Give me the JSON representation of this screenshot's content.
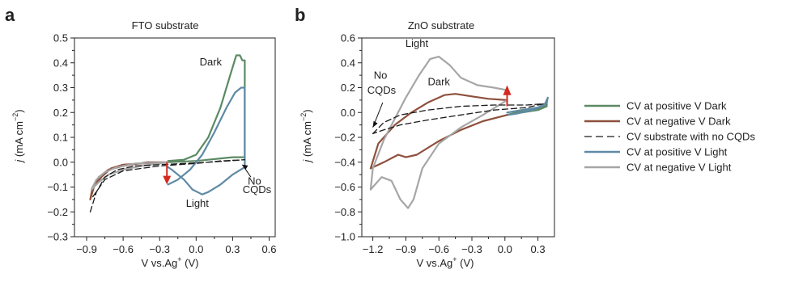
{
  "colors": {
    "pos_dark": "#5b8a63",
    "neg_dark": "#8e503c",
    "substrate": "#1a1a1a",
    "pos_light": "#5f8aa6",
    "neg_light": "#a6a6a6",
    "arrow": "#d42a20"
  },
  "panels": [
    {
      "letter": "a",
      "title": "FTO substrate",
      "ylabel_j": "j",
      "ylabel_rest": " (mA cm",
      "ylabel_exp": "−2",
      "ylabel_close": ")",
      "xlabel_main": "V vs.Ag",
      "xlabel_sup": "+",
      "xlabel_unit": " (V)"
    },
    {
      "letter": "b",
      "title": "ZnO substrate",
      "ylabel_j": "j",
      "ylabel_rest": " (mA cm",
      "ylabel_exp": "−2",
      "ylabel_close": ")",
      "xlabel_main": "V vs.Ag",
      "xlabel_sup": "+",
      "xlabel_unit": " (V)"
    }
  ],
  "legend": [
    {
      "label": "CV at positive V Dark",
      "color_key": "pos_dark",
      "dash": false
    },
    {
      "label": "CV at negative V Dark",
      "color_key": "neg_dark",
      "dash": false
    },
    {
      "label": "CV substrate with no CQDs",
      "color_key": "substrate",
      "dash": true
    },
    {
      "label": "CV at positive V Light",
      "color_key": "pos_light",
      "dash": false
    },
    {
      "label": "CV at negative V Light",
      "color_key": "neg_light",
      "dash": false
    }
  ],
  "chart_data": [
    {
      "type": "line",
      "title": "FTO substrate",
      "xlabel": "V vs.Ag+ (V)",
      "ylabel": "j (mA cm−2)",
      "xlim": [
        -1.0,
        0.65
      ],
      "ylim": [
        -0.3,
        0.5
      ],
      "xticks": [
        -0.9,
        -0.6,
        -0.3,
        0.0,
        0.3,
        0.6
      ],
      "yticks": [
        -0.3,
        -0.2,
        -0.1,
        0.0,
        0.1,
        0.2,
        0.3,
        0.4,
        0.5
      ],
      "annotations": [
        {
          "text": "Dark",
          "x": 0.12,
          "y": 0.39
        },
        {
          "text": "Light",
          "x": 0.01,
          "y": -0.18
        },
        {
          "text": "No",
          "x": 0.48,
          "y": -0.09
        },
        {
          "text": "CQDs",
          "x": 0.5,
          "y": -0.125
        }
      ],
      "series": [
        {
          "name": "CV at positive V Dark",
          "color_key": "pos_dark",
          "dash": false,
          "points": [
            [
              -0.23,
              0.005
            ],
            [
              -0.1,
              0.01
            ],
            [
              0.0,
              0.03
            ],
            [
              0.1,
              0.1
            ],
            [
              0.2,
              0.22
            ],
            [
              0.28,
              0.35
            ],
            [
              0.33,
              0.43
            ],
            [
              0.36,
              0.43
            ],
            [
              0.38,
              0.41
            ],
            [
              0.4,
              0.41
            ],
            [
              0.4,
              0.02
            ],
            [
              0.3,
              0.02
            ],
            [
              0.2,
              0.015
            ],
            [
              0.1,
              0.01
            ],
            [
              0.0,
              0.005
            ],
            [
              -0.23,
              0.0
            ]
          ]
        },
        {
          "name": "CV at positive V Light",
          "color_key": "pos_light",
          "dash": false,
          "points": [
            [
              -0.23,
              -0.09
            ],
            [
              -0.15,
              -0.07
            ],
            [
              -0.05,
              -0.03
            ],
            [
              0.05,
              0.03
            ],
            [
              0.15,
              0.12
            ],
            [
              0.25,
              0.22
            ],
            [
              0.32,
              0.28
            ],
            [
              0.37,
              0.3
            ],
            [
              0.4,
              0.3
            ],
            [
              0.4,
              -0.02
            ],
            [
              0.3,
              -0.05
            ],
            [
              0.2,
              -0.09
            ],
            [
              0.1,
              -0.12
            ],
            [
              0.05,
              -0.13
            ],
            [
              -0.03,
              -0.11
            ],
            [
              -0.1,
              -0.07
            ],
            [
              -0.2,
              -0.03
            ],
            [
              -0.23,
              -0.02
            ]
          ]
        },
        {
          "name": "CV at negative V Dark",
          "color_key": "neg_dark",
          "dash": false,
          "points": [
            [
              -0.23,
              0.0
            ],
            [
              -0.45,
              -0.005
            ],
            [
              -0.6,
              -0.01
            ],
            [
              -0.7,
              -0.025
            ],
            [
              -0.78,
              -0.06
            ],
            [
              -0.84,
              -0.1
            ],
            [
              -0.87,
              -0.15
            ],
            [
              -0.85,
              -0.1
            ],
            [
              -0.8,
              -0.06
            ],
            [
              -0.72,
              -0.03
            ],
            [
              -0.6,
              -0.015
            ],
            [
              -0.4,
              0.0
            ],
            [
              -0.23,
              0.0
            ]
          ]
        },
        {
          "name": "CV at negative V Light",
          "color_key": "neg_light",
          "dash": false,
          "points": [
            [
              -0.23,
              0.0
            ],
            [
              -0.45,
              -0.015
            ],
            [
              -0.6,
              -0.03
            ],
            [
              -0.72,
              -0.05
            ],
            [
              -0.8,
              -0.08
            ],
            [
              -0.86,
              -0.11
            ],
            [
              -0.82,
              -0.07
            ],
            [
              -0.75,
              -0.04
            ],
            [
              -0.65,
              -0.02
            ],
            [
              -0.5,
              -0.005
            ],
            [
              -0.23,
              0.0
            ]
          ]
        },
        {
          "name": "CV substrate with no CQDs",
          "color_key": "substrate",
          "dash": true,
          "points": [
            [
              -0.87,
              -0.2
            ],
            [
              -0.82,
              -0.12
            ],
            [
              -0.75,
              -0.06
            ],
            [
              -0.65,
              -0.03
            ],
            [
              -0.5,
              -0.015
            ],
            [
              -0.3,
              -0.01
            ],
            [
              -0.1,
              -0.005
            ],
            [
              0.1,
              0.0
            ],
            [
              0.4,
              0.01
            ],
            [
              0.2,
              0.005
            ],
            [
              0.0,
              -0.005
            ],
            [
              -0.3,
              -0.015
            ],
            [
              -0.6,
              -0.035
            ],
            [
              -0.75,
              -0.07
            ],
            [
              -0.85,
              -0.14
            ]
          ]
        }
      ]
    },
    {
      "type": "line",
      "title": "ZnO substrate",
      "xlabel": "V vs.Ag+ (V)",
      "ylabel": "j (mA cm−2)",
      "xlim": [
        -1.3,
        0.45
      ],
      "ylim": [
        -1.0,
        0.6
      ],
      "xticks": [
        -1.2,
        -0.9,
        -0.6,
        -0.3,
        0.0,
        0.3
      ],
      "yticks": [
        -1.0,
        -0.8,
        -0.6,
        -0.4,
        -0.2,
        0.0,
        0.2,
        0.4,
        0.6
      ],
      "annotations": [
        {
          "text": "Light",
          "x": -0.8,
          "y": 0.53
        },
        {
          "text": "Dark",
          "x": -0.6,
          "y": 0.22
        },
        {
          "text": "No",
          "x": -1.13,
          "y": 0.27
        },
        {
          "text": "CQDs",
          "x": -1.12,
          "y": 0.15
        }
      ],
      "series": [
        {
          "name": "CV at positive V Dark",
          "color_key": "pos_dark",
          "dash": false,
          "points": [
            [
              0.02,
              -0.02
            ],
            [
              0.15,
              0.0
            ],
            [
              0.3,
              0.02
            ],
            [
              0.38,
              0.05
            ],
            [
              0.38,
              0.1
            ],
            [
              0.36,
              0.05
            ],
            [
              0.25,
              0.02
            ],
            [
              0.1,
              0.0
            ],
            [
              0.02,
              -0.02
            ]
          ]
        },
        {
          "name": "CV at positive V Light",
          "color_key": "pos_light",
          "dash": false,
          "points": [
            [
              0.02,
              0.0
            ],
            [
              0.15,
              0.02
            ],
            [
              0.3,
              0.04
            ],
            [
              0.38,
              0.08
            ],
            [
              0.39,
              0.12
            ],
            [
              0.36,
              0.06
            ],
            [
              0.25,
              0.02
            ],
            [
              0.1,
              -0.01
            ],
            [
              0.02,
              -0.02
            ]
          ]
        },
        {
          "name": "CV at negative V Dark",
          "color_key": "neg_dark",
          "dash": false,
          "points": [
            [
              0.02,
              0.1
            ],
            [
              -0.15,
              0.11
            ],
            [
              -0.3,
              0.13
            ],
            [
              -0.45,
              0.15
            ],
            [
              -0.55,
              0.14
            ],
            [
              -0.7,
              0.08
            ],
            [
              -0.85,
              0.0
            ],
            [
              -1.0,
              -0.1
            ],
            [
              -1.15,
              -0.25
            ],
            [
              -1.22,
              -0.45
            ],
            [
              -1.1,
              -0.4
            ],
            [
              -0.97,
              -0.34
            ],
            [
              -0.9,
              -0.36
            ],
            [
              -0.8,
              -0.34
            ],
            [
              -0.6,
              -0.23
            ],
            [
              -0.4,
              -0.14
            ],
            [
              -0.2,
              -0.07
            ],
            [
              0.02,
              -0.02
            ]
          ]
        },
        {
          "name": "CV at negative V Light",
          "color_key": "neg_light",
          "dash": false,
          "points": [
            [
              0.02,
              0.18
            ],
            [
              -0.1,
              0.2
            ],
            [
              -0.25,
              0.22
            ],
            [
              -0.4,
              0.28
            ],
            [
              -0.5,
              0.38
            ],
            [
              -0.6,
              0.45
            ],
            [
              -0.68,
              0.43
            ],
            [
              -0.78,
              0.3
            ],
            [
              -0.9,
              0.12
            ],
            [
              -1.0,
              -0.05
            ],
            [
              -1.1,
              -0.22
            ],
            [
              -1.2,
              -0.45
            ],
            [
              -1.22,
              -0.62
            ],
            [
              -1.12,
              -0.52
            ],
            [
              -1.03,
              -0.55
            ],
            [
              -0.95,
              -0.7
            ],
            [
              -0.88,
              -0.77
            ],
            [
              -0.83,
              -0.7
            ],
            [
              -0.75,
              -0.45
            ],
            [
              -0.6,
              -0.25
            ],
            [
              -0.4,
              -0.12
            ],
            [
              -0.2,
              -0.02
            ],
            [
              0.02,
              0.1
            ]
          ]
        },
        {
          "name": "CV substrate with no CQDs",
          "color_key": "substrate",
          "dash": true,
          "points": [
            [
              -1.2,
              -0.17
            ],
            [
              -1.1,
              -0.08
            ],
            [
              -0.95,
              -0.02
            ],
            [
              -0.7,
              0.02
            ],
            [
              -0.4,
              0.05
            ],
            [
              -0.1,
              0.06
            ],
            [
              0.2,
              0.06
            ],
            [
              0.35,
              0.07
            ],
            [
              0.2,
              0.04
            ],
            [
              -0.1,
              0.02
            ],
            [
              -0.4,
              -0.02
            ],
            [
              -0.7,
              -0.06
            ],
            [
              -0.95,
              -0.1
            ],
            [
              -1.1,
              -0.14
            ],
            [
              -1.2,
              -0.17
            ]
          ]
        }
      ]
    }
  ]
}
